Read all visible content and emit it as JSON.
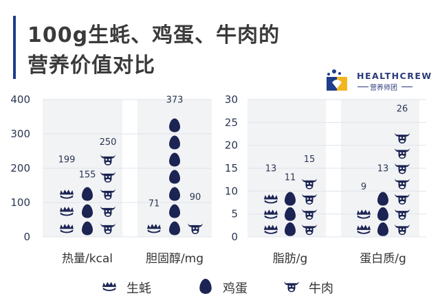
{
  "title": {
    "line1": "100g生蚝、鸡蛋、牛肉的",
    "line2": "营养价值对比"
  },
  "logo": {
    "name": "HEALTHCREW",
    "sub": "营养师团"
  },
  "legend": [
    {
      "name": "生蚝",
      "icon": "oyster-icon"
    },
    {
      "name": "鸡蛋",
      "icon": "egg-icon"
    },
    {
      "name": "牛肉",
      "icon": "cow-icon"
    }
  ],
  "colors": {
    "mark": "#1b2452",
    "axis_text": "#2a3550",
    "grid": "#dfe3ea",
    "band": "#f2f3f5",
    "title_bar": "#1f3d8a"
  },
  "chart_data": [
    {
      "type": "bar",
      "categories": [
        "热量/kcal",
        "胆固醇/mg"
      ],
      "series": [
        {
          "name": "生蚝",
          "values": [
            199,
            71
          ]
        },
        {
          "name": "鸡蛋",
          "values": [
            155,
            373
          ]
        },
        {
          "name": "牛肉",
          "values": [
            250,
            90
          ]
        }
      ],
      "ylim": [
        0,
        400
      ],
      "yticks": [
        0,
        100,
        200,
        300,
        400
      ],
      "unit_per_icon": 50,
      "grid": true
    },
    {
      "type": "bar",
      "categories": [
        "脂肪/g",
        "蛋白质/g"
      ],
      "series": [
        {
          "name": "生蚝",
          "values": [
            13,
            9
          ]
        },
        {
          "name": "鸡蛋",
          "values": [
            11,
            13
          ]
        },
        {
          "name": "牛肉",
          "values": [
            15,
            26
          ]
        }
      ],
      "ylim": [
        0,
        30
      ],
      "yticks": [
        0,
        5,
        10,
        15,
        20,
        25,
        30
      ],
      "unit_per_icon": 3.33,
      "grid": true
    }
  ]
}
